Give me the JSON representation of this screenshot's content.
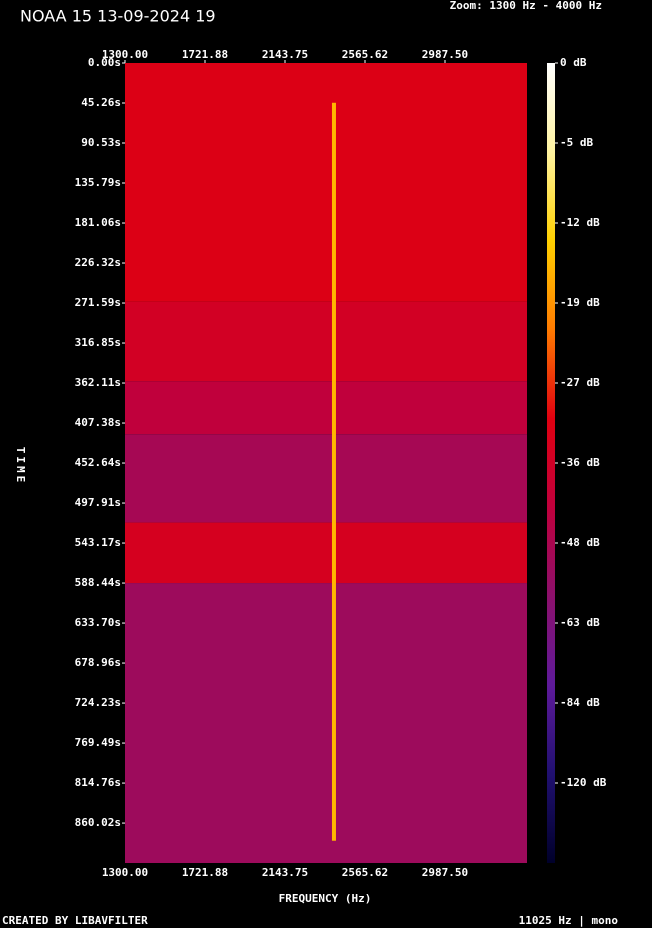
{
  "chart_data": {
    "type": "spectrogram",
    "title": "NOAA 15 13-09-2024 19",
    "zoom_label": "Zoom: 1300 Hz - 4000 Hz",
    "xlabel": "FREQUENCY (Hz)",
    "ylabel": "TIME",
    "footer_left": "CREATED BY LIBAVFILTER",
    "footer_right": "11025 Hz | mono",
    "xlim": [
      1300,
      3420
    ],
    "xticks": [
      {
        "value": 1300,
        "label": "1300.00"
      },
      {
        "value": 1721.88,
        "label": "1721.88"
      },
      {
        "value": 2143.75,
        "label": "2143.75"
      },
      {
        "value": 2565.62,
        "label": "2565.62"
      },
      {
        "value": 2987.5,
        "label": "2987.50"
      }
    ],
    "ylim": [
      0,
      905.2
    ],
    "yticks": [
      {
        "value": 0,
        "label": "0.00s"
      },
      {
        "value": 45.26,
        "label": "45.26s"
      },
      {
        "value": 90.53,
        "label": "90.53s"
      },
      {
        "value": 135.79,
        "label": "135.79s"
      },
      {
        "value": 181.06,
        "label": "181.06s"
      },
      {
        "value": 226.32,
        "label": "226.32s"
      },
      {
        "value": 271.59,
        "label": "271.59s"
      },
      {
        "value": 316.85,
        "label": "316.85s"
      },
      {
        "value": 362.11,
        "label": "362.11s"
      },
      {
        "value": 407.38,
        "label": "407.38s"
      },
      {
        "value": 452.64,
        "label": "452.64s"
      },
      {
        "value": 497.91,
        "label": "497.91s"
      },
      {
        "value": 543.17,
        "label": "543.17s"
      },
      {
        "value": 588.44,
        "label": "588.44s"
      },
      {
        "value": 633.7,
        "label": "633.70s"
      },
      {
        "value": 678.96,
        "label": "678.96s"
      },
      {
        "value": 724.23,
        "label": "724.23s"
      },
      {
        "value": 769.49,
        "label": "769.49s"
      },
      {
        "value": 814.76,
        "label": "814.76s"
      },
      {
        "value": 860.02,
        "label": "860.02s"
      }
    ],
    "colorbar_ticks": [
      {
        "value": 0,
        "label": "0 dB"
      },
      {
        "value": -5,
        "label": "-5 dB"
      },
      {
        "value": -12,
        "label": "-12 dB"
      },
      {
        "value": -19,
        "label": "-19 dB"
      },
      {
        "value": -27,
        "label": "-27 dB"
      },
      {
        "value": -36,
        "label": "-36 dB"
      },
      {
        "value": -48,
        "label": "-48 dB"
      },
      {
        "value": -63,
        "label": "-63 dB"
      },
      {
        "value": -84,
        "label": "-84 dB"
      },
      {
        "value": -120,
        "label": "-120 dB"
      }
    ],
    "colormap": [
      "#ffffff",
      "#fff3a0",
      "#ffd000",
      "#ff7a00",
      "#e00010",
      "#c0003c",
      "#8c106c",
      "#5e1a9a",
      "#201070",
      "#00002a"
    ],
    "bands": [
      {
        "t0": 0,
        "t1": 270,
        "db": -28
      },
      {
        "t0": 270,
        "t1": 360,
        "db": -31
      },
      {
        "t0": 360,
        "t1": 420,
        "db": -36
      },
      {
        "t0": 420,
        "t1": 520,
        "db": -42
      },
      {
        "t0": 520,
        "t1": 588.44,
        "db": -30
      },
      {
        "t0": 588.44,
        "t1": 905.2,
        "db": -44
      }
    ],
    "carrier": {
      "freq": 2402,
      "t0": 45,
      "t1": 880,
      "db": -14
    }
  }
}
